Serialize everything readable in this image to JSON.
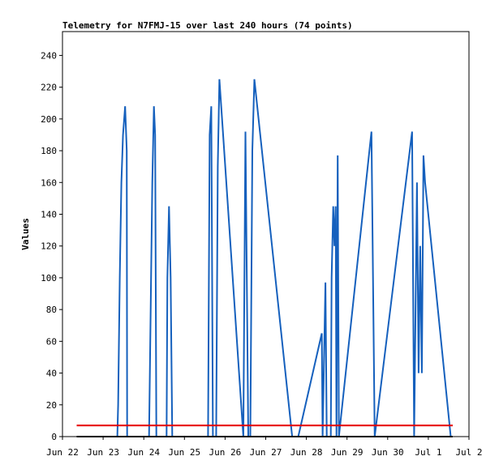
{
  "chart_data": {
    "type": "line",
    "title": "Telemetry for N7FMJ-15 over last 240 hours (74 points)",
    "xlabel": "",
    "ylabel": "Values",
    "xlim": [
      0,
      10
    ],
    "ylim": [
      0,
      255
    ],
    "x_tick_labels": [
      "Jun 22",
      "Jun 23",
      "Jun 24",
      "Jun 25",
      "Jun 26",
      "Jun 27",
      "Jun 28",
      "Jun 29",
      "Jun 30",
      "Jul 1",
      "Jul 2"
    ],
    "x_ticks": [
      0,
      1,
      2,
      3,
      4,
      5,
      6,
      7,
      8,
      9,
      10
    ],
    "y_ticks": [
      0,
      20,
      40,
      60,
      80,
      100,
      120,
      140,
      160,
      180,
      200,
      220,
      240
    ],
    "grid": false,
    "series": [
      {
        "color": "#1560bd",
        "points": [
          [
            0.35,
            0
          ],
          [
            1.35,
            0
          ],
          [
            1.37,
            20
          ],
          [
            1.41,
            100
          ],
          [
            1.45,
            160
          ],
          [
            1.49,
            190
          ],
          [
            1.54,
            208
          ],
          [
            1.58,
            180
          ],
          [
            1.59,
            0
          ],
          [
            2.13,
            0
          ],
          [
            2.17,
            80
          ],
          [
            2.21,
            160
          ],
          [
            2.25,
            208
          ],
          [
            2.28,
            190
          ],
          [
            2.31,
            0
          ],
          [
            2.56,
            0
          ],
          [
            2.58,
            100
          ],
          [
            2.62,
            145
          ],
          [
            2.66,
            100
          ],
          [
            2.7,
            0
          ],
          [
            3.58,
            0
          ],
          [
            3.62,
            190
          ],
          [
            3.66,
            208
          ],
          [
            3.7,
            0
          ],
          [
            3.78,
            0
          ],
          [
            3.82,
            170
          ],
          [
            3.86,
            225
          ],
          [
            4.45,
            0
          ],
          [
            4.5,
            192
          ],
          [
            4.57,
            0
          ],
          [
            4.62,
            0
          ],
          [
            4.67,
            180
          ],
          [
            4.72,
            225
          ],
          [
            5.65,
            0
          ],
          [
            5.8,
            0
          ],
          [
            6.38,
            65
          ],
          [
            6.4,
            0
          ],
          [
            6.47,
            97
          ],
          [
            6.5,
            0
          ],
          [
            6.6,
            0
          ],
          [
            6.62,
            100
          ],
          [
            6.66,
            145
          ],
          [
            6.69,
            120
          ],
          [
            6.72,
            145
          ],
          [
            6.74,
            0
          ],
          [
            6.77,
            177
          ],
          [
            6.8,
            0
          ],
          [
            7.6,
            192
          ],
          [
            7.68,
            0
          ],
          [
            8.6,
            192
          ],
          [
            8.65,
            0
          ],
          [
            8.72,
            160
          ],
          [
            8.76,
            40
          ],
          [
            8.8,
            120
          ],
          [
            8.84,
            40
          ],
          [
            8.88,
            177
          ],
          [
            8.92,
            160
          ],
          [
            9.55,
            0
          ],
          [
            9.6,
            0
          ]
        ]
      },
      {
        "color": "#e60000",
        "points": [
          [
            0.35,
            7
          ],
          [
            9.6,
            7
          ]
        ]
      },
      {
        "color": "#000000",
        "points": [
          [
            0.35,
            0
          ],
          [
            9.6,
            0
          ]
        ]
      }
    ]
  }
}
